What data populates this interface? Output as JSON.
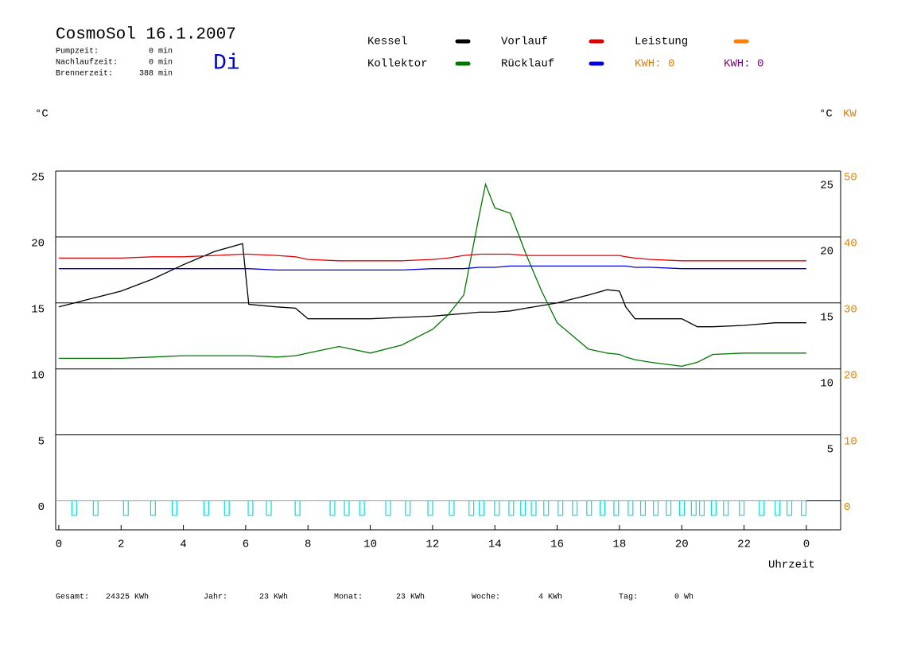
{
  "chart_data": {
    "type": "line",
    "title": "CosmoSol 16.1.2007",
    "weekday": "Di",
    "weekday_color": "#0000cc",
    "stats": [
      {
        "label": "Pumpzeit:",
        "value": "0 min"
      },
      {
        "label": "Nachlaufzeit:",
        "value": "0 min"
      },
      {
        "label": "Brennerzeit:",
        "value": "388 min"
      }
    ],
    "y_label": "°C",
    "y2_label": "°C",
    "y2_unit": "KW",
    "y2_color": "#e08000",
    "x_label": "Uhrzeit",
    "xlim": [
      -0.1,
      25.1
    ],
    "xticks": [
      0,
      2,
      4,
      6,
      8,
      10,
      12,
      14,
      16,
      18,
      20,
      22,
      {
        "value": 24,
        "label": "0"
      }
    ],
    "ylim": [
      -2.2,
      25
    ],
    "yticks": [
      0,
      5,
      10,
      15,
      20,
      25
    ],
    "yticks_right": [
      5,
      10,
      15,
      20,
      25
    ],
    "y2lim": [
      -4.4,
      50
    ],
    "y2ticks": [
      0,
      10,
      20,
      30,
      40,
      50
    ],
    "grid": true,
    "x": [
      0,
      1,
      2,
      3,
      4,
      5,
      5.9,
      6.1,
      7,
      7.6,
      8,
      9,
      10,
      11,
      12,
      12.5,
      13,
      13.5,
      13.7,
      14,
      14.5,
      15,
      15.5,
      16,
      17,
      17.6,
      18,
      18.2,
      18.5,
      19,
      20,
      20.5,
      21,
      22,
      23,
      24
    ],
    "series": [
      {
        "name": "Kessel",
        "color": "#000000",
        "values": [
          14.7,
          15.3,
          15.9,
          16.8,
          17.9,
          18.9,
          19.5,
          14.9,
          14.7,
          14.6,
          13.8,
          13.8,
          13.8,
          13.9,
          14.0,
          14.1,
          14.2,
          14.3,
          14.3,
          14.3,
          14.4,
          14.6,
          14.8,
          15.0,
          15.6,
          16.0,
          15.9,
          14.7,
          13.8,
          13.8,
          13.8,
          13.2,
          13.2,
          13.3,
          13.5,
          13.5
        ]
      },
      {
        "name": "Kollektor",
        "color": "#007700",
        "values": [
          10.8,
          10.8,
          10.8,
          10.9,
          11.0,
          11.0,
          11.0,
          11.0,
          10.9,
          11.0,
          11.2,
          11.7,
          11.2,
          11.8,
          13.0,
          14.1,
          15.6,
          21.7,
          24.0,
          22.2,
          21.8,
          18.7,
          15.9,
          13.5,
          11.5,
          11.2,
          11.1,
          10.9,
          10.7,
          10.5,
          10.2,
          10.5,
          11.1,
          11.2,
          11.2,
          11.2
        ]
      },
      {
        "name": "Vorlauf",
        "color": "#dd0000",
        "values": [
          18.4,
          18.4,
          18.4,
          18.5,
          18.5,
          18.6,
          18.7,
          18.7,
          18.6,
          18.5,
          18.3,
          18.2,
          18.2,
          18.2,
          18.3,
          18.4,
          18.6,
          18.7,
          18.7,
          18.7,
          18.7,
          18.6,
          18.6,
          18.6,
          18.6,
          18.6,
          18.6,
          18.5,
          18.4,
          18.3,
          18.2,
          18.2,
          18.2,
          18.2,
          18.2,
          18.2
        ]
      },
      {
        "name": "Rücklauf",
        "color": "#0000dd",
        "values": [
          17.6,
          17.6,
          17.6,
          17.6,
          17.6,
          17.6,
          17.6,
          17.6,
          17.5,
          17.5,
          17.5,
          17.5,
          17.5,
          17.5,
          17.6,
          17.6,
          17.6,
          17.7,
          17.7,
          17.7,
          17.8,
          17.8,
          17.8,
          17.8,
          17.8,
          17.8,
          17.8,
          17.8,
          17.7,
          17.7,
          17.6,
          17.6,
          17.6,
          17.6,
          17.6,
          17.6
        ]
      }
    ],
    "legend_extra": {
      "name": "Leistung",
      "color": "#ff8000"
    },
    "kwh_labels": [
      {
        "text": "KWH: 0",
        "color": "#e08000"
      },
      {
        "text": "KWH: 0",
        "color": "#800080"
      }
    ],
    "pump": {
      "color": "#00e0e0",
      "high": 0,
      "low": -1.1,
      "pulse_width": 0.15,
      "pulses": [
        0.42,
        1.11,
        2.08,
        2.95,
        3.64,
        4.66,
        5.32,
        6.08,
        6.67,
        7.59,
        8.71,
        9.17,
        9.66,
        10.5,
        11.13,
        11.85,
        12.54,
        13.17,
        13.5,
        13.99,
        14.45,
        14.83,
        15.17,
        15.57,
        16.03,
        16.49,
        16.95,
        17.38,
        17.82,
        18.28,
        18.68,
        19.09,
        19.5,
        19.93,
        20.31,
        20.57,
        20.95,
        21.34,
        21.85,
        22.49,
        23.0,
        23.38,
        23.84
      ]
    },
    "footer": [
      {
        "label": "Gesamt:",
        "value": "24325 KWh"
      },
      {
        "label": "Jahr:",
        "value": "23 KWh"
      },
      {
        "label": "Monat:",
        "value": "23 KWh"
      },
      {
        "label": "Woche:",
        "value": "4 KWh"
      },
      {
        "label": "Tag:",
        "value": "0 Wh"
      }
    ]
  }
}
